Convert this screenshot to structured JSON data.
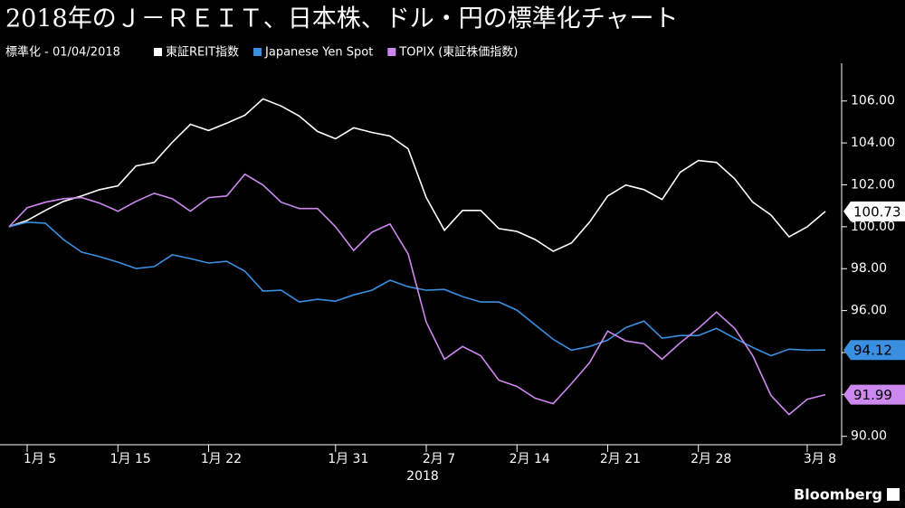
{
  "chart_data": {
    "type": "line",
    "title": "2018年のＪ－ＲＥＩＴ、日本株、ドル・円の標準化チャート",
    "subtitle": "標準化 - 01/04/2018",
    "x_label": "2018",
    "source": "Bloomberg",
    "categories": [
      null,
      "1月 5",
      null,
      null,
      null,
      null,
      "1月 15",
      null,
      null,
      null,
      null,
      "1月 22",
      null,
      null,
      null,
      null,
      null,
      null,
      "1月 31",
      null,
      null,
      null,
      null,
      "2月 7",
      null,
      null,
      null,
      null,
      "2月 14",
      null,
      null,
      null,
      null,
      "2月 21",
      null,
      null,
      null,
      null,
      "2月 28",
      null,
      null,
      null,
      null,
      null,
      "3月 8",
      null
    ],
    "ylim": [
      89.6,
      107.8
    ],
    "yticks": [
      {
        "value": 90,
        "label": "90.00"
      },
      {
        "value": 92,
        "label": "92.00"
      },
      {
        "value": 94,
        "label": "94.00"
      },
      {
        "value": 96,
        "label": "96.00"
      },
      {
        "value": 98,
        "label": "98.00"
      },
      {
        "value": 100,
        "label": "100.00"
      },
      {
        "value": 102,
        "label": "102.00"
      },
      {
        "value": 104,
        "label": "104.00"
      },
      {
        "value": 106,
        "label": "106.00"
      }
    ],
    "series": [
      {
        "name": "東証REIT指数",
        "color": "#ffffff",
        "values": [
          100.0,
          100.3,
          100.78,
          101.21,
          101.47,
          101.77,
          101.95,
          102.9,
          103.07,
          104.03,
          104.89,
          104.59,
          104.94,
          105.32,
          106.1,
          105.76,
          105.28,
          104.55,
          104.2,
          104.72,
          104.5,
          104.33,
          103.72,
          101.39,
          99.83,
          100.78,
          100.78,
          99.91,
          99.78,
          99.39,
          98.83,
          99.22,
          100.22,
          101.47,
          101.99,
          101.77,
          101.3,
          102.6,
          103.16,
          103.07,
          102.29,
          101.17,
          100.56,
          99.52,
          100.0,
          100.73
        ]
      },
      {
        "name": "Japanese Yen Spot",
        "color": "#3a8fe0",
        "values": [
          100.0,
          100.22,
          100.17,
          99.39,
          98.79,
          98.57,
          98.31,
          98.01,
          98.1,
          98.66,
          98.48,
          98.27,
          98.35,
          97.88,
          96.93,
          96.97,
          96.41,
          96.54,
          96.45,
          96.75,
          96.97,
          97.45,
          97.14,
          96.97,
          97.01,
          96.67,
          96.41,
          96.41,
          96.02,
          95.32,
          94.63,
          94.11,
          94.29,
          94.59,
          95.19,
          95.5,
          94.68,
          94.81,
          94.81,
          95.15,
          94.68,
          94.24,
          93.85,
          94.16,
          94.11,
          94.12
        ]
      },
      {
        "name": "TOPIX (東証株価指数)",
        "color": "#cc88ee",
        "values": [
          100.0,
          100.91,
          101.17,
          101.34,
          101.39,
          101.13,
          100.74,
          101.21,
          101.6,
          101.34,
          100.74,
          101.39,
          101.47,
          102.51,
          101.99,
          101.17,
          100.87,
          100.87,
          100.0,
          98.87,
          99.74,
          100.13,
          98.7,
          95.45,
          93.68,
          94.29,
          93.85,
          92.68,
          92.38,
          91.82,
          91.56,
          92.51,
          93.51,
          95.02,
          94.55,
          94.42,
          93.68,
          94.46,
          95.15,
          95.93,
          95.15,
          93.85,
          91.95,
          91.04,
          91.77,
          91.99
        ]
      }
    ]
  }
}
